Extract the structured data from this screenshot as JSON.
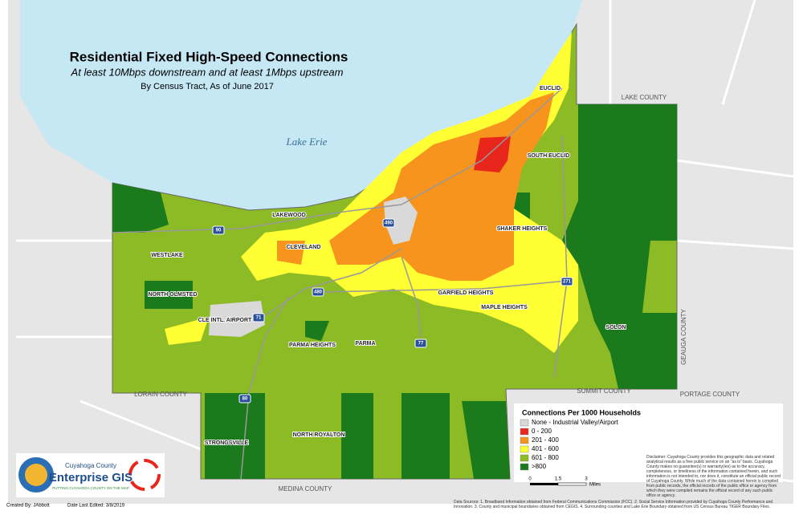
{
  "header": {
    "title": "Residential Fixed High-Speed Connections",
    "subtitle": "At least 10Mbps downstream and at least 1Mbps upstream",
    "subtitle2": "By Census Tract, As of June 2017"
  },
  "water": [
    "Lake Erie"
  ],
  "counties": [
    "LAKE COUNTY",
    "GEAUGA COUNTY",
    "PORTAGE COUNTY",
    "SUMMIT COUNTY",
    "MEDINA COUNTY",
    "LORAIN COUNTY"
  ],
  "cities": [
    "EUCLID",
    "SOUTH EUCLID",
    "LAKEWOOD",
    "CLEVELAND",
    "WESTLAKE",
    "NORTH OLMSTED",
    "CLE INTL. AIRPORT",
    "SHAKER HEIGHTS",
    "GARFIELD HEIGHTS",
    "MAPLE HEIGHTS",
    "SOLON",
    "PARMA HEIGHTS",
    "PARMA",
    "STRONGSVILLE",
    "NORTH ROYALTON"
  ],
  "highways": [
    "90",
    "490",
    "480",
    "271",
    "71",
    "77",
    "80"
  ],
  "legend": {
    "title": "Connections Per 1000 Households",
    "items": [
      {
        "label": "None - Industrial Valley/Airport",
        "color": "#d9d9d9"
      },
      {
        "label": "0 - 200",
        "color": "#e8261c"
      },
      {
        "label": "201 - 400",
        "color": "#f7941d"
      },
      {
        "label": "401 - 600",
        "color": "#ffff33"
      },
      {
        "label": "601 - 800",
        "color": "#8dbb25"
      },
      {
        "label": ">800",
        "color": "#1b7a1b"
      }
    ]
  },
  "scale": {
    "labels": [
      "0",
      "1.5",
      "3"
    ],
    "unit": "Miles"
  },
  "logo": {
    "org": "Cuyahoga County",
    "product": "Enterprise GIS",
    "tagline": "PUTTING CUYAHOGA COUNTY ON THE MAP"
  },
  "footer": {
    "created": "Created By: JAbbott",
    "edited": "Date Last Edited: 3/8/2019",
    "disclaimer": "Disclaimer: Cuyahoga County provides this geographic data and related analytical results as a free public service on an \"as is\" basis. Cuyahoga County makes no guarantee(s) or warranty(ies) as to the accuracy, completeness, or timeliness of the information contained herein, and such information is not intended to, nor does it, constitute an official public record of Cuyahoga County. While much of the data contained herein is compiled from public records, the official records of the public office or agency from which they were compiled remains the official record of any such public office or agency.",
    "sources": "Data Sources: 1. Broadband Information obtained from Federal Communications Commission (FCC). 2. Social Service Information provided by Cuyahoga County Performance and Innovation. 3. County and municipal boundaries obtained from CEGIS. 4. Surrounding counties and Lake Erie Boundary obtained from US Census Bureau TIGER Boundary Files."
  }
}
